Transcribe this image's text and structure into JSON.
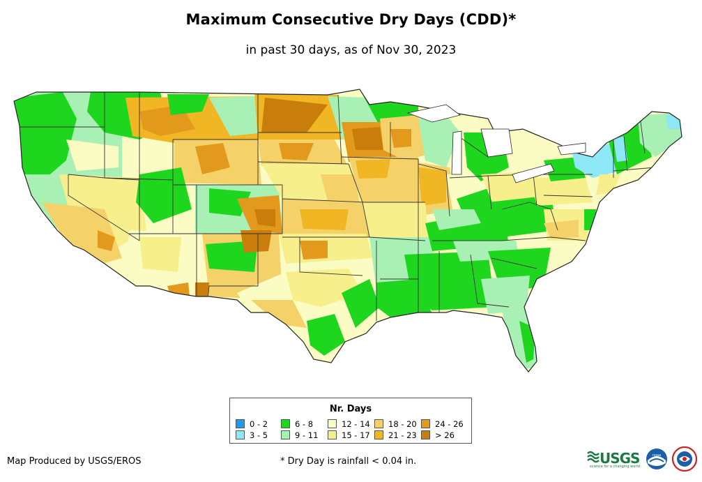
{
  "title": "Maximum Consecutive Dry Days (CDD)*",
  "subtitle": "in past 30 days, as of Nov 30, 2023",
  "legend": {
    "title": "Nr. Days",
    "items": [
      {
        "label": "0 - 2",
        "color": "#1e9bf0"
      },
      {
        "label": "3 - 5",
        "color": "#8de7f7"
      },
      {
        "label": "6 - 8",
        "color": "#1fd61f"
      },
      {
        "label": "9 - 11",
        "color": "#a9f0b5"
      },
      {
        "label": "12 - 14",
        "color": "#fbfbc4"
      },
      {
        "label": "15 - 17",
        "color": "#f7ef8c"
      },
      {
        "label": "18 - 20",
        "color": "#f4d269"
      },
      {
        "label": "21 - 23",
        "color": "#f0b624"
      },
      {
        "label": "24 - 26",
        "color": "#e39a1c"
      },
      {
        "label": "> 26",
        "color": "#c97d0b"
      }
    ]
  },
  "credit": "Map Produced by USGS/EROS",
  "footnote": "* Dry Day is rainfall < 0.04 in.",
  "logos": {
    "usgs_text": "USGS",
    "usgs_tagline": "science for a changing world",
    "noaa_text": "noaa"
  }
}
